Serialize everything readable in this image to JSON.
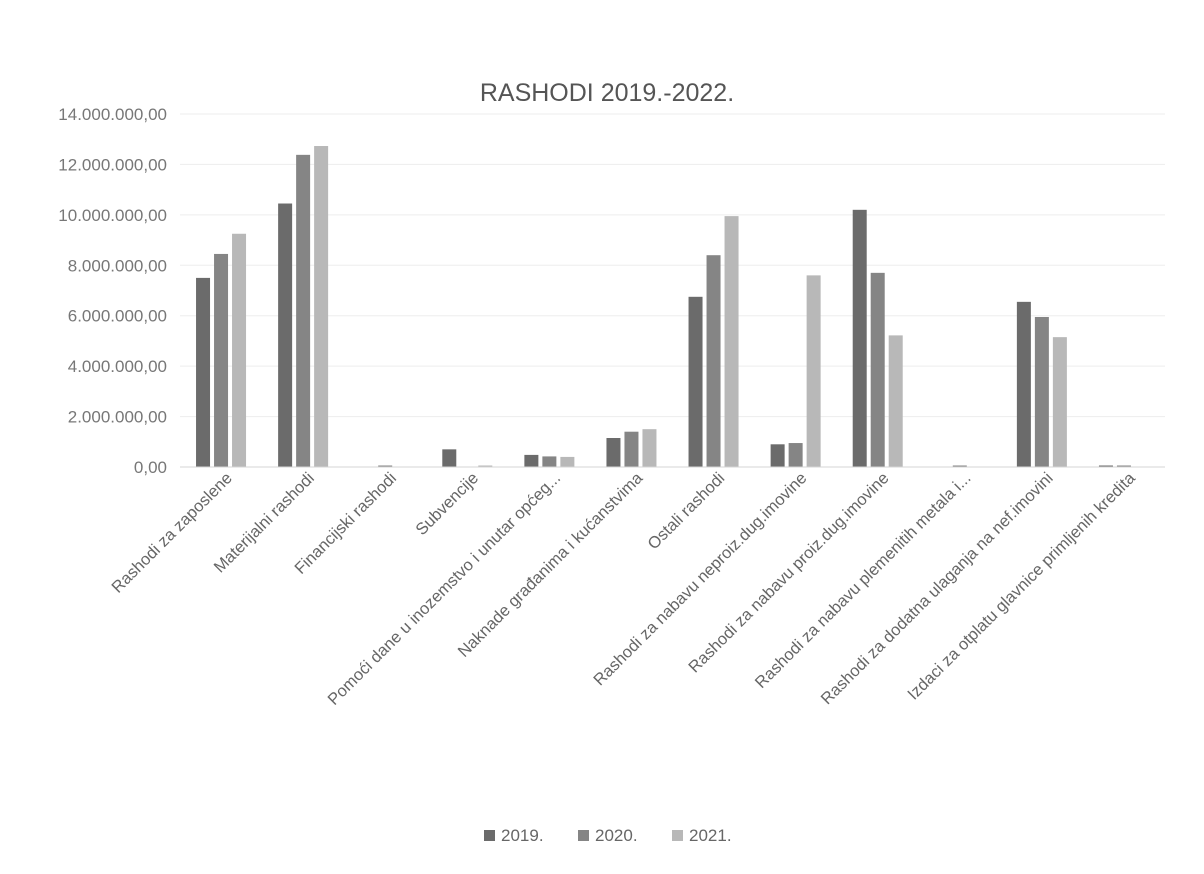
{
  "chart_data": {
    "type": "bar",
    "title": "RASHODI 2019.-2022.",
    "xlabel": "",
    "ylabel": "",
    "ylim": [
      0,
      14000000
    ],
    "y_ticks": [
      "0,00",
      "2.000.000,00",
      "4.000.000,00",
      "6.000.000,00",
      "8.000.000,00",
      "10.000.000,00",
      "12.000.000,00",
      "14.000.000,00"
    ],
    "grid": true,
    "legend_position": "bottom",
    "categories": [
      "Rashodi za zaposlene",
      "Materijalni rashodi",
      "Financijski rashodi",
      "Subvencije",
      "Pomoći dane u inozemstvo i unutar općeg...",
      "Naknade građanima i kućanstvima",
      "Ostali rashodi",
      "Rashodi za nabavu neproiz.dug.imovine",
      "Rashodi za nabavu proiz.dug.imovine",
      "Rashodi za nabavu plemenitih metala i...",
      "Rashodi za dodatna ulaganja na nef.imovini",
      "Izdaci za otplatu glavnice primljenih kredita"
    ],
    "series": [
      {
        "name": "2019.",
        "color": "#6b6b6b",
        "values": [
          7500000,
          10450000,
          0,
          700000,
          480000,
          1150000,
          6750000,
          900000,
          10200000,
          0,
          6550000,
          20000
        ]
      },
      {
        "name": "2020.",
        "color": "#858585",
        "values": [
          8450000,
          12380000,
          40000,
          0,
          420000,
          1400000,
          8400000,
          950000,
          7700000,
          30000,
          5950000,
          20000
        ]
      },
      {
        "name": "2021.",
        "color": "#b8b8b8",
        "values": [
          9250000,
          12730000,
          0,
          20000,
          400000,
          1500000,
          9950000,
          7600000,
          5220000,
          0,
          5150000,
          0
        ]
      }
    ]
  }
}
